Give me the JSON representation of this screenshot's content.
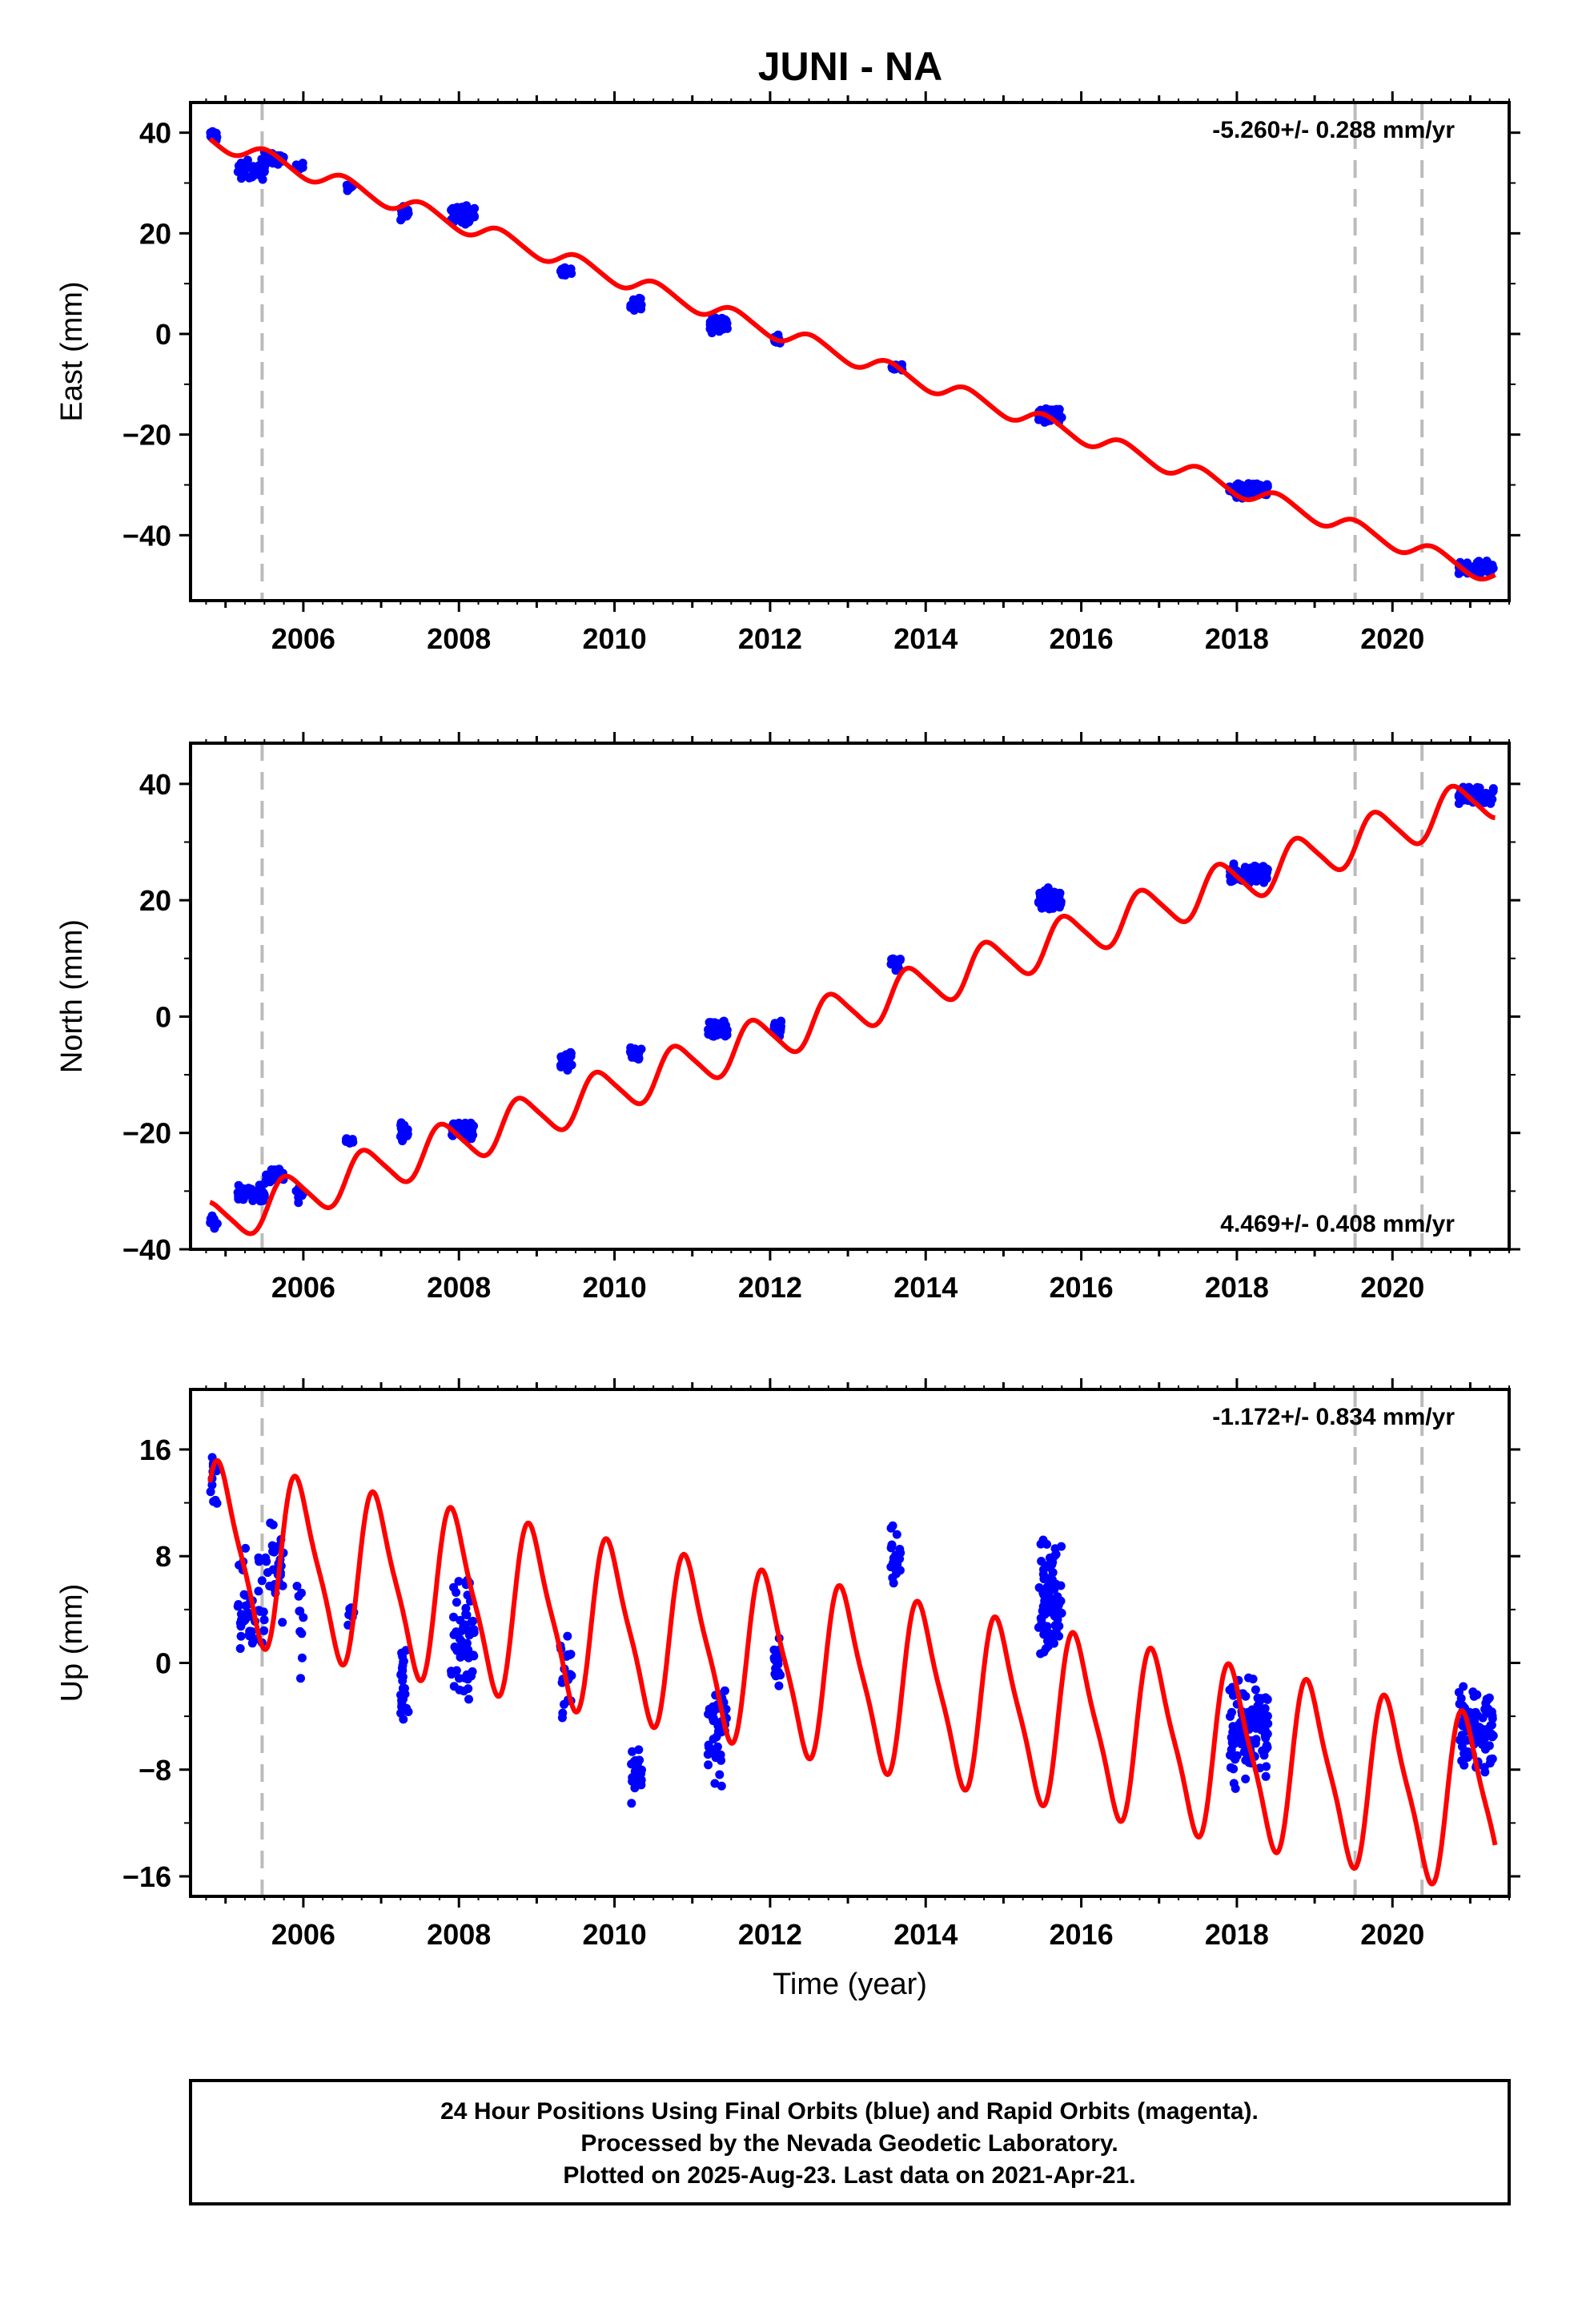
{
  "title": "JUNI - NA",
  "colors": {
    "final_orbits": "#0000ff",
    "model": "#ff0000",
    "event_line": "#bbbbbb",
    "frame": "#000000"
  },
  "chart_data": [
    {
      "type": "scatter",
      "component": "East",
      "ylabel": "East (mm)",
      "xlim": [
        2004.55,
        2021.5
      ],
      "ylim": [
        -53,
        46
      ],
      "yticks": [
        -40,
        -20,
        0,
        20,
        40
      ],
      "xticks": [
        2006,
        2008,
        2010,
        2012,
        2014,
        2016,
        2018,
        2020
      ],
      "xticklabels": [
        "2006",
        "2008",
        "2010",
        "2012",
        "2014",
        "2016",
        "2018",
        "2020"
      ],
      "grid": false,
      "rate_label": "-5.260+/- 0.288 mm/yr",
      "model": {
        "rate": -5.26,
        "offset": 38.5,
        "t0": 2004.85,
        "annual_amp": 1.6,
        "annual_phase": 0.3,
        "semi_amp": 0.2
      },
      "event_lines": [
        2005.47,
        2019.52,
        2020.38
      ],
      "campaigns": [
        {
          "start": 2004.8,
          "end": 2004.9,
          "mean": 39.5,
          "spread": 2.0,
          "n": 12
        },
        {
          "start": 2005.15,
          "end": 2005.5,
          "mean": 32.5,
          "spread": 3.0,
          "n": 40
        },
        {
          "start": 2005.5,
          "end": 2005.75,
          "mean": 35.0,
          "spread": 2.0,
          "n": 30
        },
        {
          "start": 2005.9,
          "end": 2006.0,
          "mean": 33.5,
          "spread": 1.5,
          "n": 10
        },
        {
          "start": 2006.55,
          "end": 2006.65,
          "mean": 29.0,
          "spread": 1.2,
          "n": 8
        },
        {
          "start": 2007.25,
          "end": 2007.35,
          "mean": 24.0,
          "spread": 2.0,
          "n": 25
        },
        {
          "start": 2007.9,
          "end": 2008.2,
          "mean": 23.5,
          "spread": 2.5,
          "n": 60
        },
        {
          "start": 2009.3,
          "end": 2009.45,
          "mean": 12.5,
          "spread": 1.5,
          "n": 20
        },
        {
          "start": 2010.2,
          "end": 2010.35,
          "mean": 6.0,
          "spread": 2.0,
          "n": 25
        },
        {
          "start": 2011.2,
          "end": 2011.45,
          "mean": 2.0,
          "spread": 2.0,
          "n": 50
        },
        {
          "start": 2012.05,
          "end": 2012.15,
          "mean": -1.0,
          "spread": 1.5,
          "n": 20
        },
        {
          "start": 2013.55,
          "end": 2013.7,
          "mean": -6.5,
          "spread": 1.0,
          "n": 20
        },
        {
          "start": 2015.45,
          "end": 2015.75,
          "mean": -16.0,
          "spread": 2.0,
          "n": 80
        },
        {
          "start": 2017.9,
          "end": 2018.4,
          "mean": -31.0,
          "spread": 2.0,
          "n": 110
        },
        {
          "start": 2020.85,
          "end": 2021.3,
          "mean": -46.5,
          "spread": 2.0,
          "n": 90
        }
      ]
    },
    {
      "type": "scatter",
      "component": "North",
      "ylabel": "North (mm)",
      "xlim": [
        2004.55,
        2021.5
      ],
      "ylim": [
        -40,
        47
      ],
      "yticks": [
        -40,
        -20,
        0,
        20,
        40
      ],
      "xticks": [
        2006,
        2008,
        2010,
        2012,
        2014,
        2016,
        2018,
        2020
      ],
      "xticklabels": [
        "2006",
        "2008",
        "2010",
        "2012",
        "2014",
        "2016",
        "2018",
        "2020"
      ],
      "grid": false,
      "rate_label": "4.469+/- 0.408 mm/yr",
      "model": {
        "rate": 4.469,
        "offset": -35.5,
        "t0": 2004.85,
        "annual_amp": 3.8,
        "annual_phase": 0.55,
        "semi_amp": 0.6
      },
      "event_lines": [
        2005.47,
        2019.52,
        2020.38
      ],
      "campaigns": [
        {
          "start": 2004.8,
          "end": 2004.9,
          "mean": -35.5,
          "spread": 2.0,
          "n": 12
        },
        {
          "start": 2005.15,
          "end": 2005.5,
          "mean": -30.5,
          "spread": 2.5,
          "n": 40
        },
        {
          "start": 2005.5,
          "end": 2005.75,
          "mean": -27.5,
          "spread": 2.0,
          "n": 30
        },
        {
          "start": 2005.9,
          "end": 2006.0,
          "mean": -30.5,
          "spread": 2.0,
          "n": 10
        },
        {
          "start": 2006.55,
          "end": 2006.65,
          "mean": -21.5,
          "spread": 1.5,
          "n": 8
        },
        {
          "start": 2007.25,
          "end": 2007.35,
          "mean": -20.0,
          "spread": 2.5,
          "n": 25
        },
        {
          "start": 2007.9,
          "end": 2008.2,
          "mean": -19.5,
          "spread": 2.0,
          "n": 60
        },
        {
          "start": 2009.3,
          "end": 2009.45,
          "mean": -7.5,
          "spread": 2.5,
          "n": 20
        },
        {
          "start": 2010.2,
          "end": 2010.35,
          "mean": -6.5,
          "spread": 2.0,
          "n": 25
        },
        {
          "start": 2011.2,
          "end": 2011.45,
          "mean": -2.0,
          "spread": 2.5,
          "n": 50
        },
        {
          "start": 2012.05,
          "end": 2012.15,
          "mean": -2.0,
          "spread": 2.0,
          "n": 20
        },
        {
          "start": 2013.55,
          "end": 2013.7,
          "mean": 9.0,
          "spread": 2.0,
          "n": 20
        },
        {
          "start": 2015.45,
          "end": 2015.75,
          "mean": 20.0,
          "spread": 2.5,
          "n": 80
        },
        {
          "start": 2017.9,
          "end": 2018.4,
          "mean": 24.5,
          "spread": 2.0,
          "n": 110
        },
        {
          "start": 2020.85,
          "end": 2021.3,
          "mean": 38.0,
          "spread": 2.0,
          "n": 90
        }
      ]
    },
    {
      "type": "scatter",
      "component": "Up",
      "ylabel": "Up (mm)",
      "xlabel": "Time (year)",
      "xlim": [
        2004.55,
        2021.5
      ],
      "ylim": [
        -17.5,
        20.5
      ],
      "yticks": [
        -16,
        -8,
        0,
        8,
        16
      ],
      "xticks": [
        2006,
        2008,
        2010,
        2012,
        2014,
        2016,
        2018,
        2020
      ],
      "xticklabels": [
        "2006",
        "2008",
        "2010",
        "2012",
        "2014",
        "2016",
        "2018",
        "2020"
      ],
      "grid": false,
      "rate_label": "-1.172+/- 0.834 mm/yr",
      "model": {
        "rate": -1.172,
        "offset": 8.5,
        "t0": 2004.85,
        "annual_amp": 6.2,
        "annual_phase": 0.7,
        "semi_amp": 1.4
      },
      "event_lines": [
        2005.47,
        2019.52,
        2020.38
      ],
      "campaigns": [
        {
          "start": 2004.8,
          "end": 2004.9,
          "mean": 14.0,
          "spread": 5.0,
          "n": 14
        },
        {
          "start": 2005.15,
          "end": 2005.5,
          "mean": 4.0,
          "spread": 6.0,
          "n": 45
        },
        {
          "start": 2005.5,
          "end": 2005.75,
          "mean": 7.0,
          "spread": 5.0,
          "n": 30
        },
        {
          "start": 2005.9,
          "end": 2006.0,
          "mean": 2.0,
          "spread": 5.0,
          "n": 10
        },
        {
          "start": 2006.55,
          "end": 2006.65,
          "mean": 3.5,
          "spread": 1.5,
          "n": 6
        },
        {
          "start": 2007.25,
          "end": 2007.35,
          "mean": -2.0,
          "spread": 5.0,
          "n": 25
        },
        {
          "start": 2007.9,
          "end": 2008.2,
          "mean": 2.0,
          "spread": 6.0,
          "n": 60
        },
        {
          "start": 2009.3,
          "end": 2009.45,
          "mean": -1.0,
          "spread": 5.0,
          "n": 20
        },
        {
          "start": 2010.2,
          "end": 2010.35,
          "mean": -8.0,
          "spread": 4.0,
          "n": 25
        },
        {
          "start": 2011.2,
          "end": 2011.45,
          "mean": -5.0,
          "spread": 5.0,
          "n": 50
        },
        {
          "start": 2012.05,
          "end": 2012.15,
          "mean": 0.0,
          "spread": 4.0,
          "n": 20
        },
        {
          "start": 2013.55,
          "end": 2013.7,
          "mean": 8.0,
          "spread": 4.0,
          "n": 20
        },
        {
          "start": 2015.45,
          "end": 2015.75,
          "mean": 5.0,
          "spread": 6.0,
          "n": 80
        },
        {
          "start": 2017.9,
          "end": 2018.4,
          "mean": -5.0,
          "spread": 5.0,
          "n": 120
        },
        {
          "start": 2020.85,
          "end": 2021.3,
          "mean": -5.0,
          "spread": 4.5,
          "n": 90
        }
      ]
    }
  ],
  "footer": {
    "line1": "24 Hour Positions Using Final Orbits (blue) and Rapid Orbits (magenta).",
    "line2": "Processed by the Nevada Geodetic Laboratory.",
    "line3": "Plotted on 2025-Aug-23. Last data on 2021-Apr-21."
  }
}
